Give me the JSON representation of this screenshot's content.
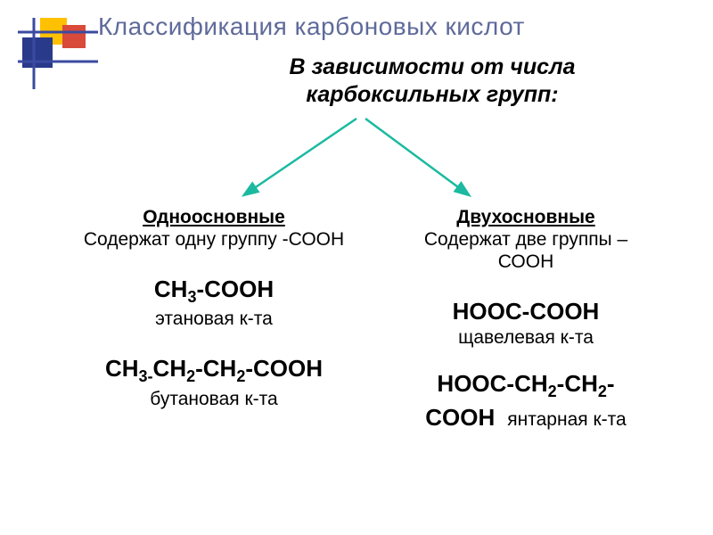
{
  "decor": {
    "yellow": "#ffc000",
    "red": "#d94a3a",
    "blue": "#2a3a8a",
    "line": "#3a4aa0"
  },
  "title": "Классификация карбоновых кислот",
  "subtitle_l1": "В зависимости от числа",
  "subtitle_l2": "карбоксильных групп:",
  "arrow_color": "#1bbaa0",
  "left": {
    "head": "Одноосновные",
    "desc": "Содержат одну группу -СООН",
    "f1_html": "CH<span class='sub'>3</span>-COOH",
    "n1": "этановая к-та",
    "f2_html": "CH<span class='sub'>3-</span>CH<span class='sub'>2</span>-CH<span class='sub'>2</span>-COOH",
    "n2": "бутановая к-та"
  },
  "right": {
    "head": "Двухосновные",
    "desc_l1": "Содержат две группы –",
    "desc_l2": "СООН",
    "f1_html": "HOOC-COOH",
    "n1": "щавелевая к-та",
    "f2_html": "HOOC-CH<span class='sub'>2</span>-CH<span class='sub'>2</span>-",
    "f2b_html": "COOH",
    "n2": "янтарная к-та"
  }
}
